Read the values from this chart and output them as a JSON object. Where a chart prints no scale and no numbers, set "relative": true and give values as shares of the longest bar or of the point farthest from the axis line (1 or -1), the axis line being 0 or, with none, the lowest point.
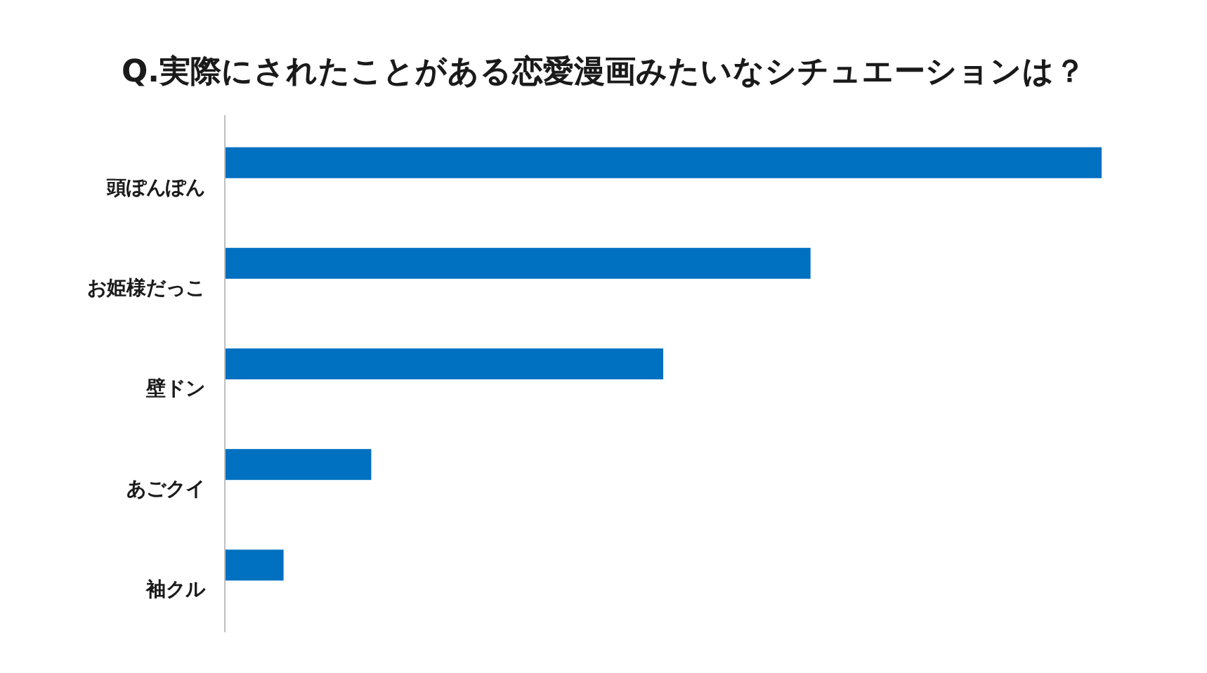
{
  "chart_data": {
    "type": "bar",
    "orientation": "horizontal",
    "relative": true,
    "title": "Q.実際にされたことがある恋愛漫画みたいなシチュエーションは？",
    "categories": [
      "頭ぽんぽん",
      "お姫様だっこ",
      "壁ドン",
      "あごクイ",
      "袖クル"
    ],
    "series": [
      {
        "color": "#0070c0",
        "values": [
          1,
          0.668,
          0.5,
          0.167,
          0.067
        ]
      }
    ]
  }
}
